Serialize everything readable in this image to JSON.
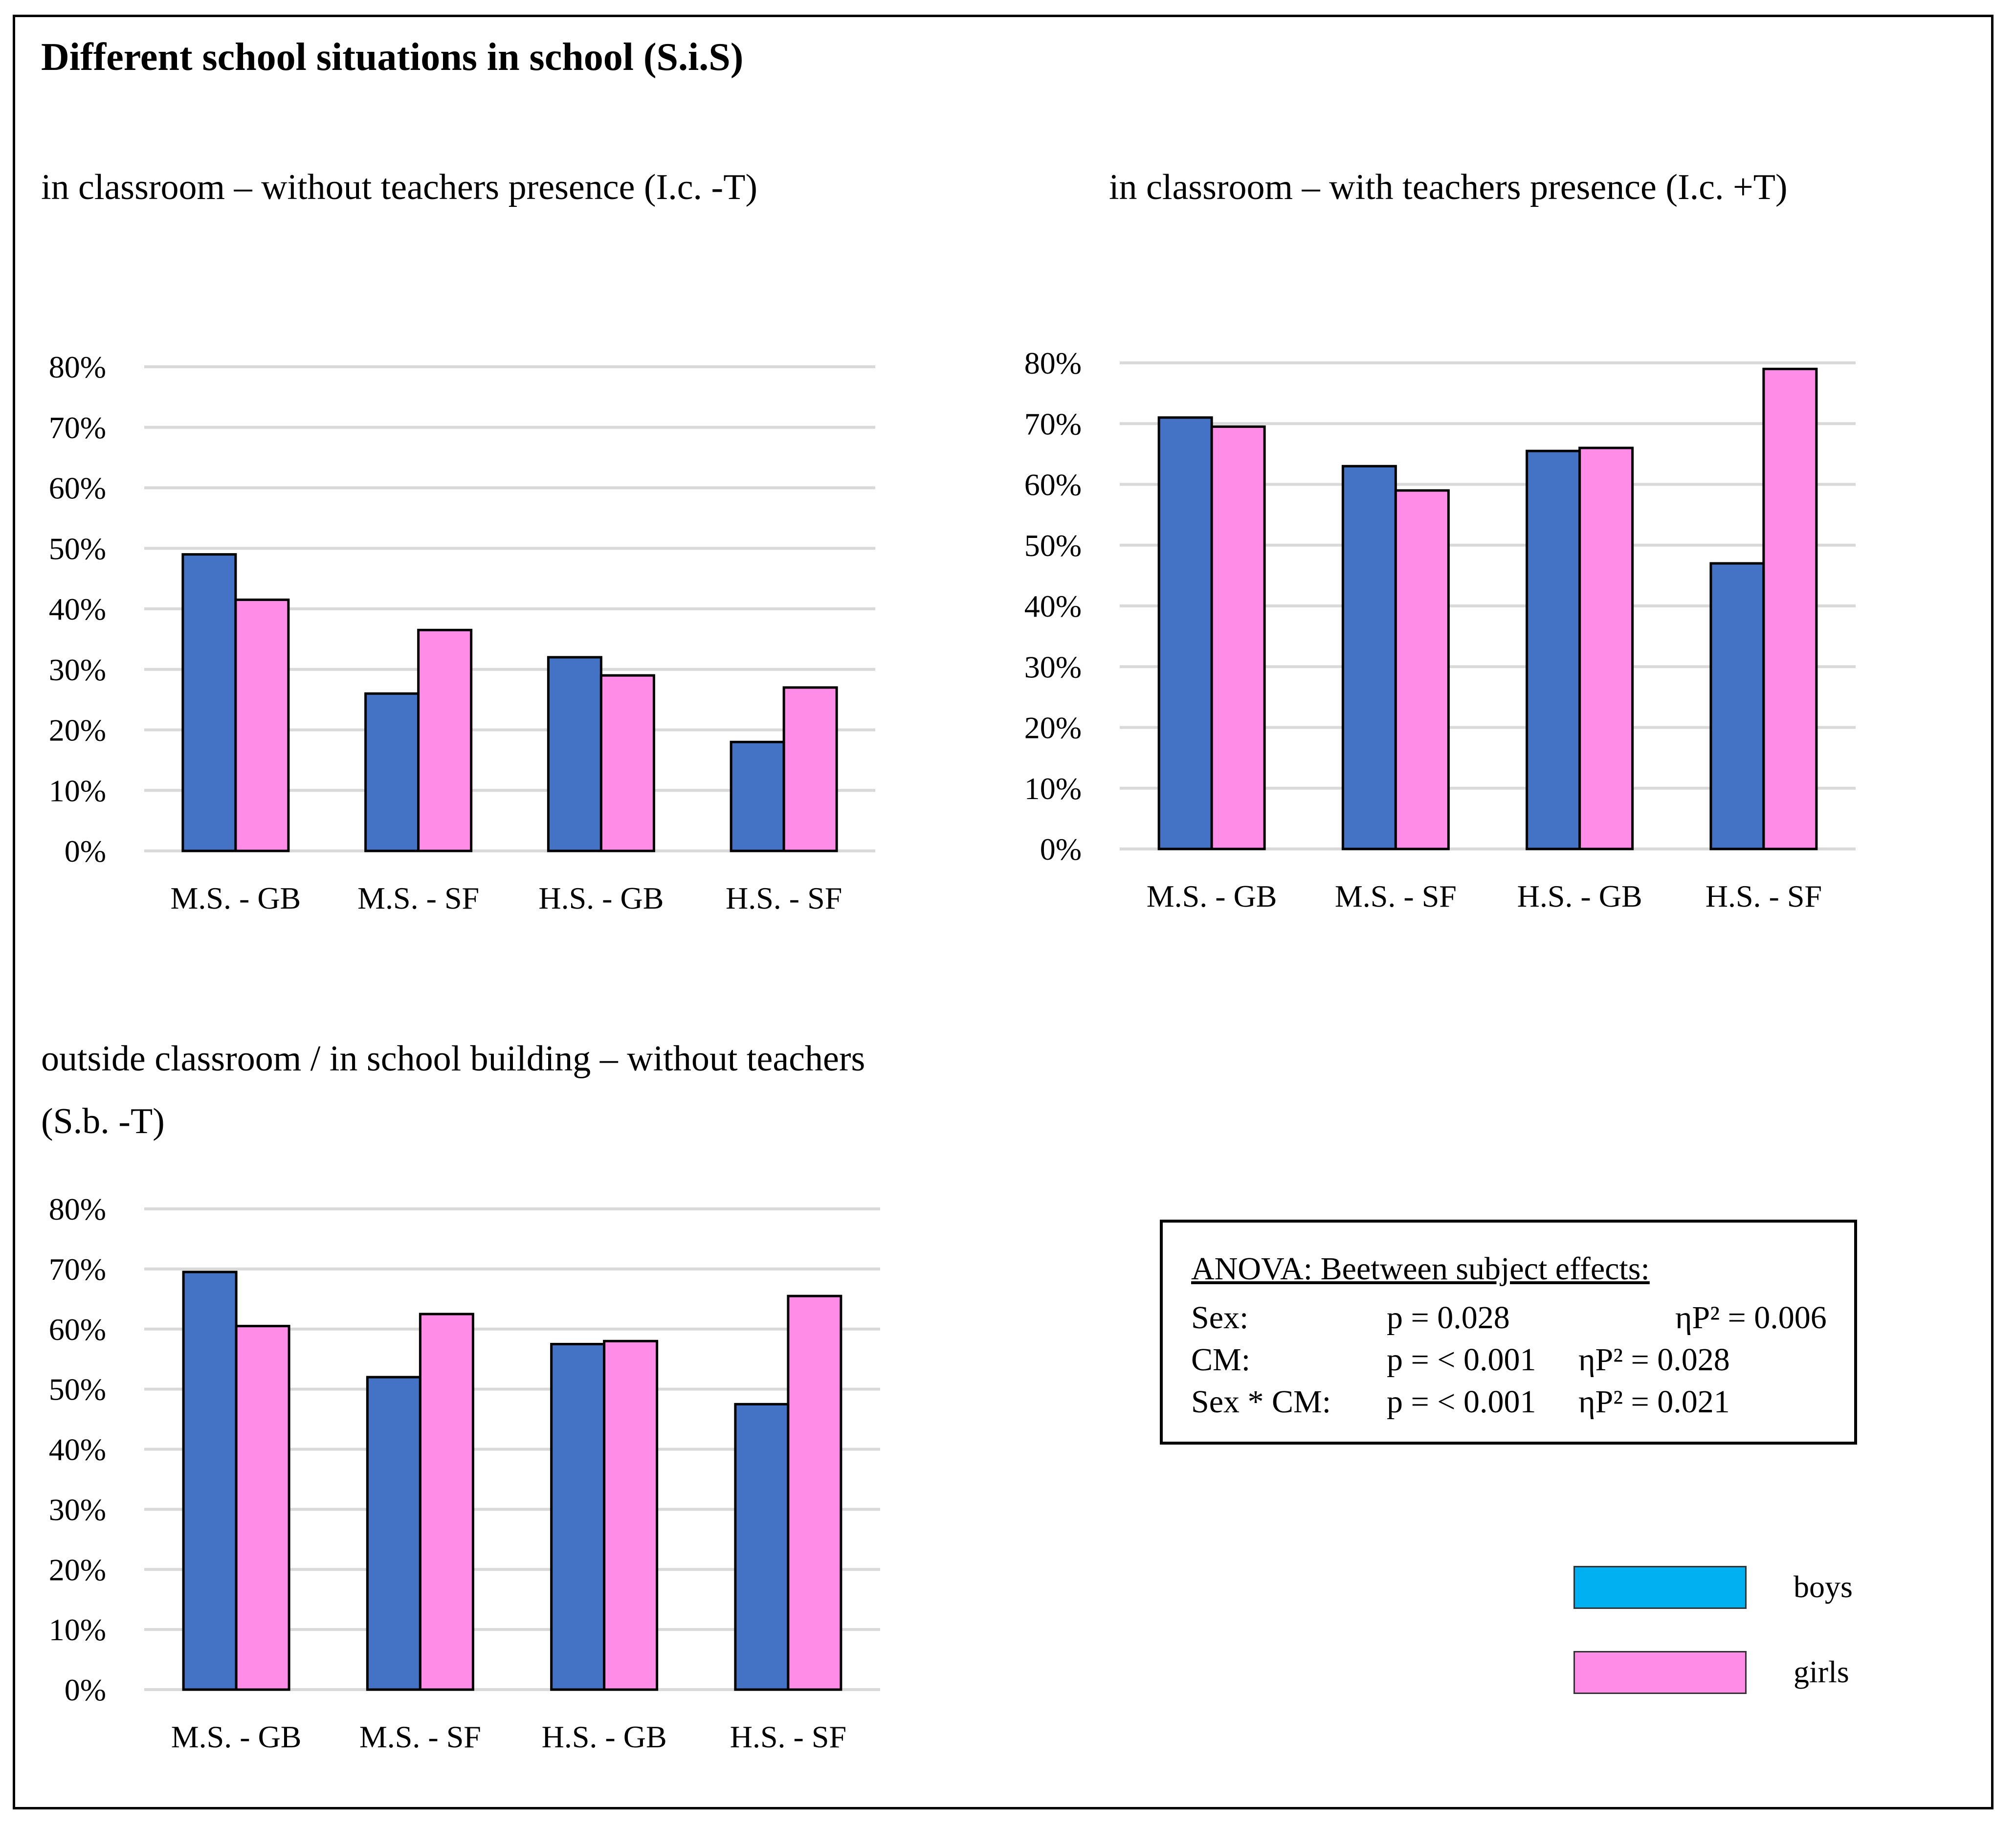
{
  "main_title": "Different school situations in school (S.i.S)",
  "colors": {
    "boys": "#4472c4",
    "girls": "#ff8de8",
    "legend_boys": "#00b0f0",
    "legend_girls": "#ff8de8",
    "grid": "#d9d9d9"
  },
  "chart_data": [
    {
      "type": "bar",
      "title": "in classroom – without teachers presence (I.c. -T)",
      "categories": [
        "M.S. - GB",
        "M.S. - SF",
        "H.S. - GB",
        "H.S. - SF"
      ],
      "series": [
        {
          "name": "boys",
          "values": [
            49,
            26,
            32,
            18
          ]
        },
        {
          "name": "girls",
          "values": [
            41.5,
            36.5,
            29,
            27
          ]
        }
      ],
      "yticks": [
        "0%",
        "10%",
        "20%",
        "30%",
        "40%",
        "50%",
        "60%",
        "70%",
        "80%"
      ],
      "ylim": [
        0,
        80
      ],
      "grid": true,
      "xlabel": "",
      "ylabel": ""
    },
    {
      "type": "bar",
      "title": "in classroom – with teachers presence (I.c. +T)",
      "categories": [
        "M.S. - GB",
        "M.S. - SF",
        "H.S. - GB",
        "H.S. - SF"
      ],
      "series": [
        {
          "name": "boys",
          "values": [
            71,
            63,
            65.5,
            47
          ]
        },
        {
          "name": "girls",
          "values": [
            69.5,
            59,
            66,
            79
          ]
        }
      ],
      "yticks": [
        "0%",
        "10%",
        "20%",
        "30%",
        "40%",
        "50%",
        "60%",
        "70%",
        "80%"
      ],
      "ylim": [
        0,
        80
      ],
      "grid": true,
      "xlabel": "",
      "ylabel": ""
    },
    {
      "type": "bar",
      "title": "outside classroom / in school building – without teachers",
      "title_line2": "(S.b. -T)",
      "categories": [
        "M.S. - GB",
        "M.S. - SF",
        "H.S. - GB",
        "H.S. - SF"
      ],
      "series": [
        {
          "name": "boys",
          "values": [
            69.5,
            52,
            57.5,
            47.5
          ]
        },
        {
          "name": "girls",
          "values": [
            60.5,
            62.5,
            58,
            65.5
          ]
        }
      ],
      "yticks": [
        "0%",
        "10%",
        "20%",
        "30%",
        "40%",
        "50%",
        "60%",
        "70%",
        "80%"
      ],
      "ylim": [
        0,
        80
      ],
      "grid": true,
      "xlabel": "",
      "ylabel": ""
    }
  ],
  "anova": {
    "header": "ANOVA: Beetween subject effects:",
    "rows": [
      {
        "label": "Sex:",
        "p": "p = 0.028",
        "eta": "ηP² = 0.006"
      },
      {
        "label": "CM:",
        "p": "p = < 0.001",
        "eta": "ηP² = 0.028"
      },
      {
        "label": "Sex * CM:",
        "p": "p = < 0.001",
        "eta": "ηP² = 0.021"
      }
    ]
  },
  "legend": [
    {
      "label": "boys"
    },
    {
      "label": "girls"
    }
  ]
}
